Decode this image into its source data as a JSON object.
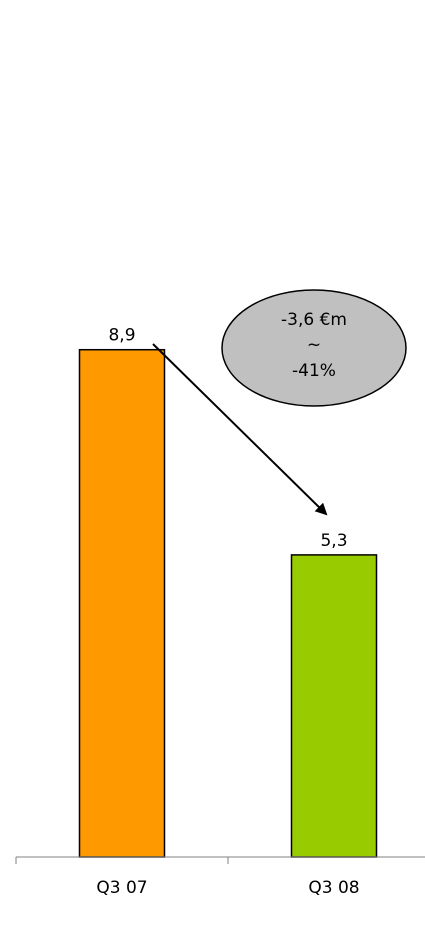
{
  "chart_data": {
    "type": "bar",
    "categories": [
      "Q3 07",
      "Q3 08"
    ],
    "values": [
      8.9,
      5.3
    ],
    "value_labels": [
      "8,9",
      "5,3"
    ],
    "colors": [
      "#ff9900",
      "#99cc00"
    ],
    "ylim": [
      0,
      14
    ],
    "grid": false,
    "title": "",
    "xlabel": "",
    "ylabel": "",
    "annotation": {
      "lines": [
        "-3,6 €m",
        "~",
        "-41%"
      ],
      "fill": "#c0c0c0"
    }
  }
}
